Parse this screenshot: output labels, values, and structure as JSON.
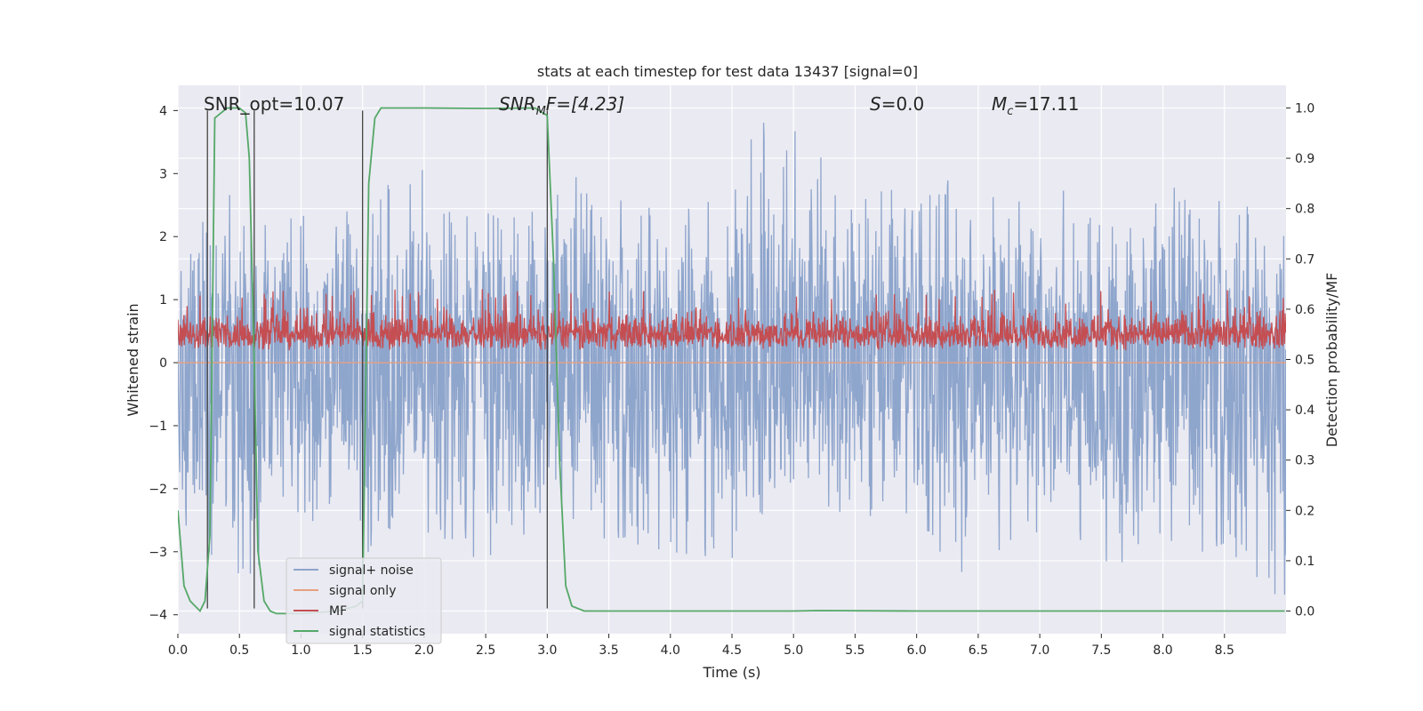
{
  "chart_data": {
    "type": "line",
    "title": "stats at each timestep for test data 13437 [signal=0]",
    "xlabel": "Time (s)",
    "ylabel": "Whitened strain",
    "y2label": "Detection probability/MF",
    "xlim": [
      0,
      9.0
    ],
    "ylim": [
      -4.3,
      4.4
    ],
    "y2lim": [
      -0.045,
      1.045
    ],
    "x_ticks": [
      "0.0",
      "0.5",
      "1.0",
      "1.5",
      "2.0",
      "2.5",
      "3.0",
      "3.5",
      "4.0",
      "4.5",
      "5.0",
      "5.5",
      "6.0",
      "6.5",
      "7.0",
      "7.5",
      "8.0",
      "8.5"
    ],
    "y_ticks": [
      "4",
      "3",
      "2",
      "1",
      "0",
      "−1",
      "−2",
      "−3",
      "−4"
    ],
    "y2_ticks": [
      "1.0",
      "0.9",
      "0.8",
      "0.7",
      "0.6",
      "0.5",
      "0.4",
      "0.3",
      "0.2",
      "0.1",
      "0.0"
    ],
    "grid": true,
    "legend_position": "lower-left",
    "annotations": {
      "snr_opt": "SNR_opt=10.07",
      "snr_mf_prefix": "SNR",
      "snr_mf_sub": "M",
      "snr_mf_suffix": "F=[4.23]",
      "s_prefix": "S",
      "s_suffix": "=0.0",
      "mc_prefix": "M",
      "mc_sub": "c",
      "mc_suffix": "=17.11"
    },
    "vertical_lines_x": [
      0.24,
      0.62,
      1.5,
      3.0
    ],
    "series": [
      {
        "name": "signal+ noise",
        "color": "#8ea5cc",
        "axis": "left",
        "style": "dense noise, roughly ±2 with spikes to ±4",
        "envelope_up": [
          [
            0.0,
            2.8
          ],
          [
            0.3,
            2.9
          ],
          [
            0.6,
            2.3
          ],
          [
            0.8,
            2.5
          ],
          [
            1.2,
            2.4
          ],
          [
            1.5,
            2.5
          ],
          [
            1.9,
            3.3
          ],
          [
            2.4,
            2.4
          ],
          [
            3.2,
            3.4
          ],
          [
            4.0,
            2.5
          ],
          [
            4.85,
            4.0
          ],
          [
            5.25,
            3.2
          ],
          [
            5.6,
            2.7
          ],
          [
            6.1,
            2.8
          ],
          [
            6.6,
            3.1
          ],
          [
            7.0,
            2.8
          ],
          [
            7.7,
            2.6
          ],
          [
            8.0,
            3.2
          ],
          [
            8.3,
            3.1
          ],
          [
            8.9,
            2.5
          ]
        ],
        "envelope_down": [
          [
            0.0,
            -2.5
          ],
          [
            0.4,
            -3.3
          ],
          [
            0.62,
            -3.4
          ],
          [
            1.0,
            -2.3
          ],
          [
            1.25,
            -2.9
          ],
          [
            1.5,
            -3.0
          ],
          [
            2.5,
            -3.1
          ],
          [
            3.0,
            -2.5
          ],
          [
            3.8,
            -3.0
          ],
          [
            4.5,
            -3.1
          ],
          [
            5.0,
            -2.3
          ],
          [
            5.5,
            -2.5
          ],
          [
            6.0,
            -2.6
          ],
          [
            6.33,
            -3.9
          ],
          [
            6.4,
            -3.2
          ],
          [
            7.0,
            -2.7
          ],
          [
            7.6,
            -3.2
          ],
          [
            8.0,
            -3.0
          ],
          [
            8.5,
            -3.0
          ],
          [
            8.9,
            -3.7
          ]
        ]
      },
      {
        "name": "signal only",
        "color": "#e8a080",
        "axis": "left",
        "style": "flat zero (no injected signal)"
      },
      {
        "name": "MF",
        "color": "#c44e52",
        "axis": "right",
        "style": "dense band between about 0.5 and 0.62 with peaks to 0.64",
        "band": [
          0.5,
          0.62
        ]
      },
      {
        "name": "signal statistics",
        "color": "#55a868",
        "axis": "right",
        "x": [
          0.0,
          0.05,
          0.1,
          0.18,
          0.22,
          0.26,
          0.3,
          0.35,
          0.4,
          0.5,
          0.55,
          0.58,
          0.62,
          0.65,
          0.7,
          0.75,
          0.8,
          1.0,
          1.3,
          1.45,
          1.5,
          1.55,
          1.6,
          1.65,
          1.7,
          2.0,
          2.5,
          2.9,
          3.0,
          3.05,
          3.1,
          3.15,
          3.2,
          3.3,
          4.0,
          5.0,
          5.2,
          6.0,
          7.0,
          8.0,
          8.99
        ],
        "values": [
          0.2,
          0.05,
          0.02,
          0.0,
          0.02,
          0.15,
          0.98,
          0.99,
          1.0,
          1.0,
          0.99,
          0.9,
          0.5,
          0.12,
          0.02,
          0.0,
          -0.005,
          -0.005,
          0.0,
          0.01,
          0.02,
          0.85,
          0.98,
          1.0,
          1.0,
          1.0,
          0.999,
          1.0,
          0.985,
          0.7,
          0.3,
          0.05,
          0.01,
          0.0,
          0.0,
          0.0,
          0.001,
          0.0,
          0.0,
          0.0,
          0.0
        ]
      }
    ]
  }
}
